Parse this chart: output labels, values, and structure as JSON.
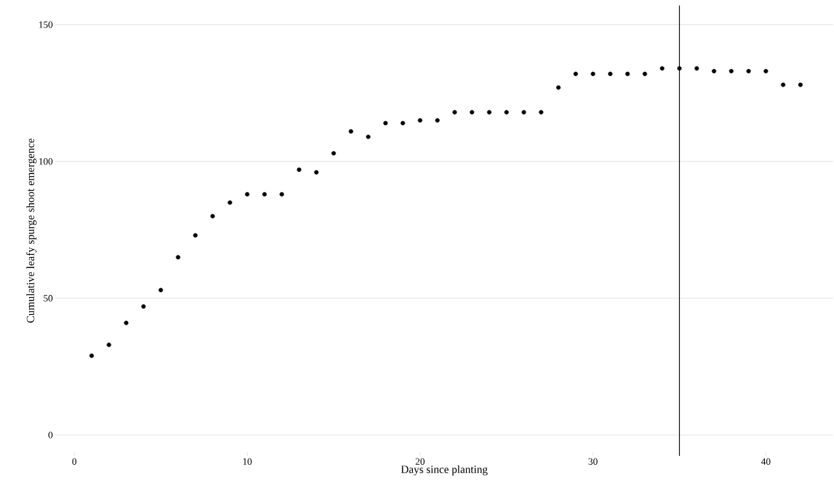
{
  "chart_data": {
    "type": "scatter",
    "xlabel": "Days since planting",
    "ylabel": "Cumulative leafy spurge shoot emergence",
    "x": [
      1,
      2,
      3,
      4,
      5,
      6,
      7,
      8,
      9,
      10,
      11,
      12,
      13,
      14,
      15,
      16,
      17,
      18,
      19,
      20,
      21,
      22,
      23,
      24,
      25,
      26,
      27,
      28,
      29,
      30,
      31,
      32,
      33,
      34,
      35,
      36,
      37,
      38,
      39,
      40,
      41,
      42
    ],
    "series": [
      {
        "color": "#000000",
        "values": [
          29,
          33,
          41,
          47,
          53,
          65,
          73,
          80,
          85,
          88,
          88,
          88,
          97,
          96,
          103,
          111,
          109,
          114,
          114,
          115,
          115,
          118,
          118,
          118,
          118,
          118,
          118,
          127,
          132,
          132,
          132,
          132,
          132,
          134,
          134,
          134,
          133,
          133,
          133,
          133,
          128,
          128
        ]
      }
    ],
    "xlim": [
      -1.1,
      43.9
    ],
    "ylim": [
      -7.6,
      157
    ],
    "xticks": [
      0,
      10,
      20,
      30,
      40
    ],
    "yticks": [
      0,
      50,
      100,
      150
    ],
    "grid": "y",
    "marker": "circle",
    "ref_lines": [
      {
        "axis": "x",
        "value": 35,
        "color": "#000000"
      }
    ]
  }
}
